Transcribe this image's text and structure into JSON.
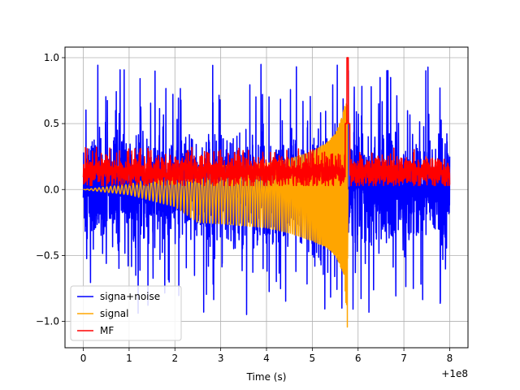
{
  "chart_data": {
    "type": "line",
    "title": "",
    "xlabel": "Time (s)",
    "ylabel": "",
    "x_offset_text": "+1e8",
    "xlim": [
      -0.4,
      8.4
    ],
    "ylim": [
      -1.2,
      1.08
    ],
    "xticks": [
      0,
      1,
      2,
      3,
      4,
      5,
      6,
      7,
      8
    ],
    "xtick_labels": [
      "0",
      "1",
      "2",
      "3",
      "4",
      "5",
      "6",
      "7",
      "8"
    ],
    "yticks": [
      -1.0,
      -0.5,
      0.0,
      0.5,
      1.0
    ],
    "ytick_labels": [
      "−1.0",
      "−0.5",
      "0.0",
      "0.5",
      "1.0"
    ],
    "grid": true,
    "legend_position": "lower-left",
    "series": [
      {
        "name": "signa+noise",
        "color": "#0000ff",
        "kind": "noise",
        "x_range": [
          0,
          8
        ],
        "envelope": {
          "upper_typical": 0.45,
          "upper_peak": 1.0,
          "lower_typical": -0.45,
          "lower_peak": -0.95
        }
      },
      {
        "name": "signal",
        "color": "#ffa500",
        "kind": "chirp",
        "x_range": [
          0,
          5.77
        ],
        "amplitude_points": [
          [
            0,
            0.0
          ],
          [
            1.0,
            0.04
          ],
          [
            2.0,
            0.13
          ],
          [
            3.0,
            0.18
          ],
          [
            4.0,
            0.2
          ],
          [
            4.5,
            0.23
          ],
          [
            5.0,
            0.29
          ],
          [
            5.3,
            0.35
          ],
          [
            5.5,
            0.42
          ],
          [
            5.65,
            0.55
          ],
          [
            5.72,
            0.65
          ],
          [
            5.77,
            0.65
          ]
        ],
        "trough_points": [
          [
            0,
            0.0
          ],
          [
            1.0,
            -0.04
          ],
          [
            2.0,
            -0.13
          ],
          [
            2.5,
            -0.25
          ],
          [
            3.0,
            -0.26
          ],
          [
            4.0,
            -0.29
          ],
          [
            4.5,
            -0.33
          ],
          [
            5.0,
            -0.39
          ],
          [
            5.3,
            -0.44
          ],
          [
            5.5,
            -0.5
          ],
          [
            5.7,
            -0.65
          ],
          [
            5.77,
            -1.08
          ]
        ],
        "peak_time": 5.77
      },
      {
        "name": "MF",
        "color": "#ff0000",
        "kind": "mf",
        "x_range": [
          0,
          8
        ],
        "baseline_low": 0.05,
        "baseline_high": 0.25,
        "peak_time": 5.77,
        "peak_value": 1.0
      }
    ]
  }
}
